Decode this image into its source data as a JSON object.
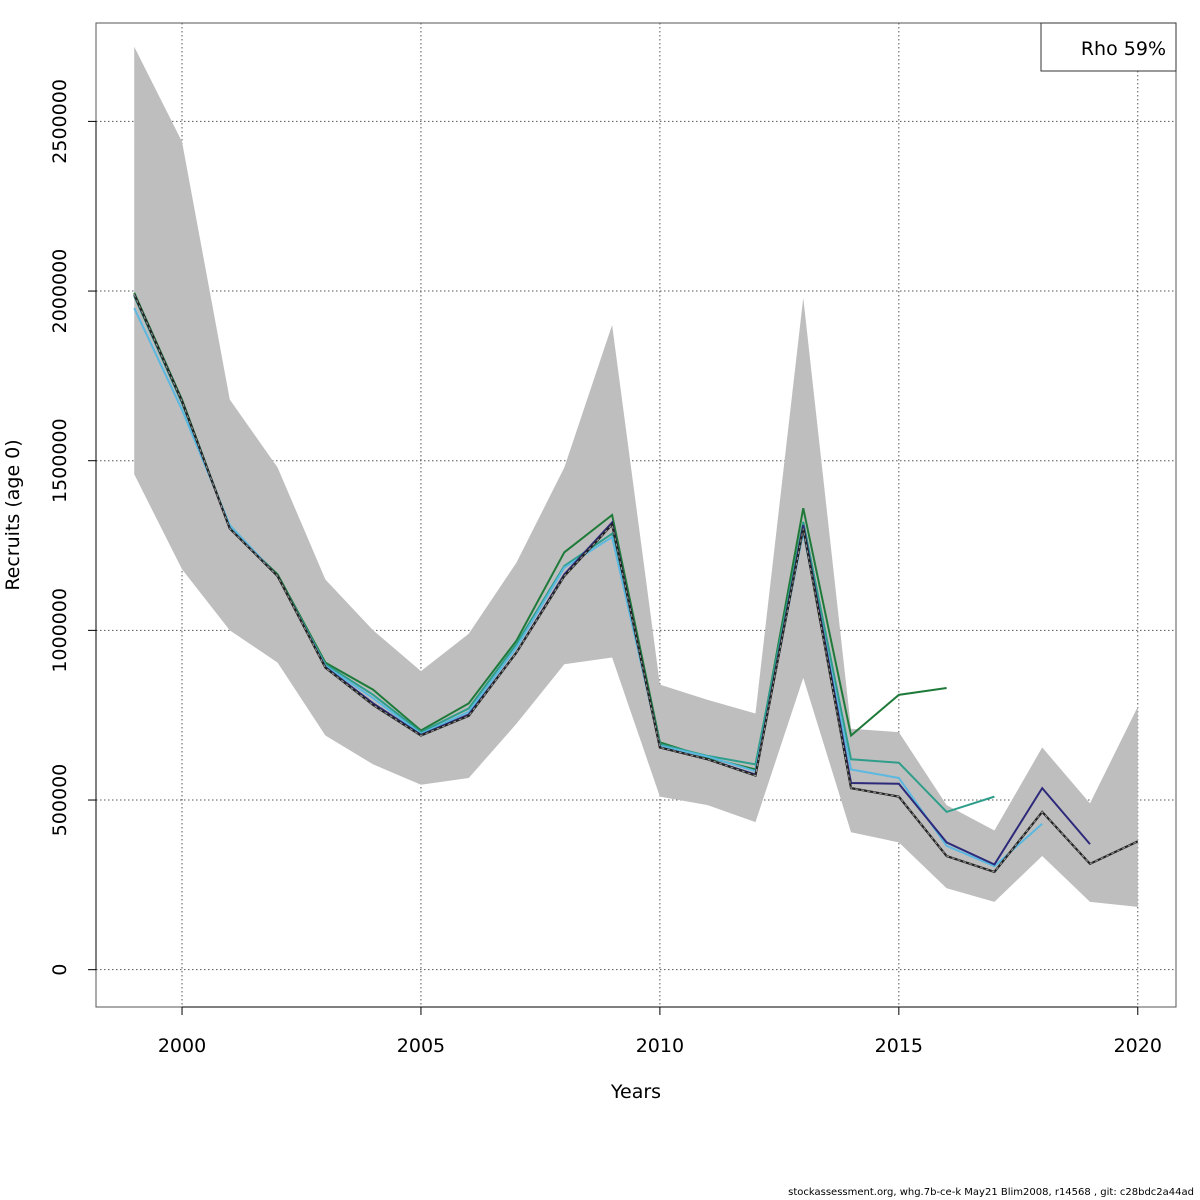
{
  "chart_data": {
    "type": "line",
    "xlabel": "Years",
    "ylabel": "Recruits (age 0)",
    "xlim": [
      1998.2,
      2020.8
    ],
    "ylim": [
      -110000,
      2790000
    ],
    "x_ticks": [
      "2000",
      "2005",
      "2010",
      "2015",
      "2020"
    ],
    "y_ticks": [
      "0",
      "500000",
      "1000000",
      "1500000",
      "2000000",
      "2500000"
    ],
    "grid": true,
    "legend": {
      "position": "top-right",
      "text": "Rho 59%"
    },
    "band": {
      "x": [
        1999,
        2000,
        2001,
        2002,
        2003,
        2004,
        2005,
        2006,
        2007,
        2008,
        2009,
        2010,
        2011,
        2012,
        2013,
        2014,
        2015,
        2016,
        2017,
        2018,
        2019,
        2020
      ],
      "upper": [
        2720000,
        2440000,
        1680000,
        1480000,
        1150000,
        1000000,
        880000,
        990000,
        1200000,
        1480000,
        1900000,
        840000,
        795000,
        755000,
        1980000,
        710000,
        700000,
        485000,
        410000,
        655000,
        490000,
        775000
      ],
      "lower": [
        1460000,
        1180000,
        1000000,
        905000,
        690000,
        605000,
        545000,
        565000,
        725000,
        900000,
        920000,
        510000,
        485000,
        435000,
        860000,
        405000,
        375000,
        240000,
        200000,
        335000,
        200000,
        185000
      ]
    },
    "series": [
      {
        "color": "#1f7a3a",
        "x": [
          1999,
          2000,
          2001,
          2002,
          2003,
          2004,
          2005,
          2006,
          2007,
          2008,
          2009,
          2010,
          2011,
          2012,
          2013,
          2014,
          2015,
          2016
        ],
        "values": [
          1995000,
          1680000,
          1300000,
          1165000,
          905000,
          825000,
          705000,
          785000,
          970000,
          1230000,
          1340000,
          670000,
          625000,
          590000,
          1360000,
          690000,
          810000,
          830000
        ]
      },
      {
        "color": "#2e9e8a",
        "x": [
          1999,
          2000,
          2001,
          2002,
          2003,
          2004,
          2005,
          2006,
          2007,
          2008,
          2009,
          2010,
          2011,
          2012,
          2013,
          2014,
          2015,
          2016,
          2017
        ],
        "values": [
          1985000,
          1670000,
          1305000,
          1160000,
          900000,
          810000,
          700000,
          770000,
          960000,
          1190000,
          1285000,
          665000,
          630000,
          605000,
          1320000,
          620000,
          610000,
          465000,
          510000
        ]
      },
      {
        "color": "#5bb8e0",
        "x": [
          1999,
          2000,
          2001,
          2002,
          2003,
          2004,
          2005,
          2006,
          2007,
          2008,
          2009,
          2010,
          2011,
          2012,
          2013,
          2014,
          2015,
          2016,
          2017,
          2018
        ],
        "values": [
          1950000,
          1650000,
          1310000,
          1160000,
          895000,
          800000,
          695000,
          760000,
          950000,
          1185000,
          1275000,
          660000,
          628000,
          585000,
          1290000,
          590000,
          565000,
          365000,
          305000,
          430000
        ]
      },
      {
        "color": "#2d2a7a",
        "x": [
          1999,
          2000,
          2001,
          2002,
          2003,
          2004,
          2005,
          2006,
          2007,
          2008,
          2009,
          2010,
          2011,
          2012,
          2013,
          2014,
          2015,
          2016,
          2017,
          2018,
          2019
        ],
        "values": [
          1990000,
          1675000,
          1300000,
          1160000,
          892000,
          785000,
          692000,
          752000,
          935000,
          1165000,
          1318000,
          655000,
          620000,
          575000,
          1310000,
          550000,
          548000,
          375000,
          310000,
          535000,
          370000
        ]
      },
      {
        "color": "#222222",
        "dashed": true,
        "x": [
          1999,
          2000,
          2001,
          2002,
          2003,
          2004,
          2005,
          2006,
          2007,
          2008,
          2009,
          2010,
          2011,
          2012,
          2013,
          2014,
          2015,
          2016,
          2017,
          2018,
          2019,
          2020
        ],
        "values": [
          1990000,
          1675000,
          1300000,
          1160000,
          890000,
          780000,
          690000,
          748000,
          935000,
          1160000,
          1312000,
          655000,
          620000,
          572000,
          1300000,
          535000,
          510000,
          335000,
          288000,
          465000,
          312000,
          378000
        ]
      }
    ]
  },
  "footer": "stockassessment.org, whg.7b-ce-k  May21  Blim2008, r14568 , git: c28bdc2a44ad"
}
